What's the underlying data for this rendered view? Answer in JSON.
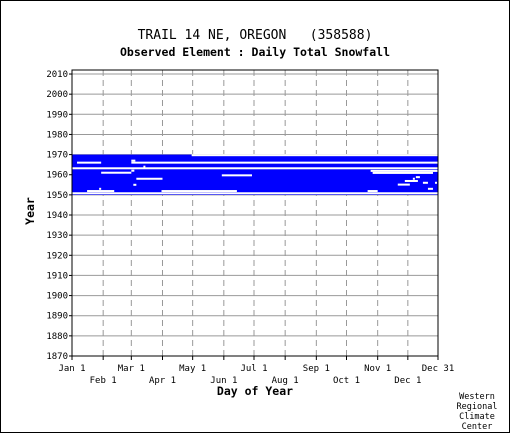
{
  "chart_data": {
    "type": "heatmap",
    "title": "TRAIL 14 NE, OREGON   (358588)",
    "subtitle": "Observed Element : Daily Total Snowfall",
    "xlabel": "Day of Year",
    "ylabel": "Year",
    "x_ticks_upper": [
      {
        "label": "Jan 1",
        "day": 1
      },
      {
        "label": "Mar 1",
        "day": 60
      },
      {
        "label": "May 1",
        "day": 121
      },
      {
        "label": "Jul 1",
        "day": 182
      },
      {
        "label": "Sep 1",
        "day": 244
      },
      {
        "label": "Nov 1",
        "day": 305
      },
      {
        "label": "Dec 31",
        "day": 365
      }
    ],
    "x_ticks_lower": [
      {
        "label": "Feb 1",
        "day": 32
      },
      {
        "label": "Apr 1",
        "day": 91
      },
      {
        "label": "Jun 1",
        "day": 152
      },
      {
        "label": "Aug 1",
        "day": 213
      },
      {
        "label": "Oct 1",
        "day": 274
      },
      {
        "label": "Dec 1",
        "day": 335
      }
    ],
    "y_ticks": [
      "1870",
      "1880",
      "1890",
      "1900",
      "1910",
      "1920",
      "1930",
      "1940",
      "1950",
      "1960",
      "1970",
      "1980",
      "1990",
      "2000",
      "2010"
    ],
    "xlim": [
      1,
      365
    ],
    "ylim": [
      1870,
      2012
    ],
    "grid": true,
    "colors": {
      "data": "#0000ff",
      "grid": "#999999",
      "background": "#ffffff"
    },
    "data_blocks": [
      {
        "year_start": 1950,
        "year_end": 1970,
        "day_start": 1,
        "day_end": 365
      }
    ],
    "missing_segments": [
      {
        "year": 1969.7,
        "day_start": 120,
        "day_end": 365
      },
      {
        "year": 1966.0,
        "day_start": 6,
        "day_end": 30
      },
      {
        "year": 1966.0,
        "day_start": 60,
        "day_end": 365
      },
      {
        "year": 1963.2,
        "day_start": 1,
        "day_end": 365
      },
      {
        "year": 1961.9,
        "day_start": 298,
        "day_end": 365
      },
      {
        "year": 1961.0,
        "day_start": 30,
        "day_end": 60
      },
      {
        "year": 1960.9,
        "day_start": 300,
        "day_end": 360
      },
      {
        "year": 1959.7,
        "day_start": 150,
        "day_end": 180
      },
      {
        "year": 1958.8,
        "day_start": 343,
        "day_end": 347
      },
      {
        "year": 1958.0,
        "day_start": 65,
        "day_end": 91
      },
      {
        "year": 1956.9,
        "day_start": 332,
        "day_end": 345
      },
      {
        "year": 1956.0,
        "day_start": 350,
        "day_end": 355
      },
      {
        "year": 1955.1,
        "day_start": 325,
        "day_end": 337
      },
      {
        "year": 1951.9,
        "day_start": 16,
        "day_end": 43
      },
      {
        "year": 1951.9,
        "day_start": 90,
        "day_end": 165
      },
      {
        "year": 1951.9,
        "day_start": 295,
        "day_end": 305
      },
      {
        "year": 1950.8,
        "day_start": 1,
        "day_end": 365
      },
      {
        "year": 1953.0,
        "day_start": 355,
        "day_end": 360
      }
    ],
    "missing_ticks": [
      {
        "year": 1967,
        "day": 60,
        "span": 4
      },
      {
        "year": 1962,
        "day": 60,
        "span": 3
      },
      {
        "year": 1955,
        "day": 62,
        "span": 3
      },
      {
        "year": 1964,
        "day": 72,
        "span": 2
      },
      {
        "year": 1958,
        "day": 340,
        "span": 2
      },
      {
        "year": 1956,
        "day": 362,
        "span": 2
      },
      {
        "year": 1953,
        "day": 28,
        "span": 2
      }
    ]
  },
  "credit": [
    "Western",
    "Regional",
    "Climate",
    "Center"
  ]
}
